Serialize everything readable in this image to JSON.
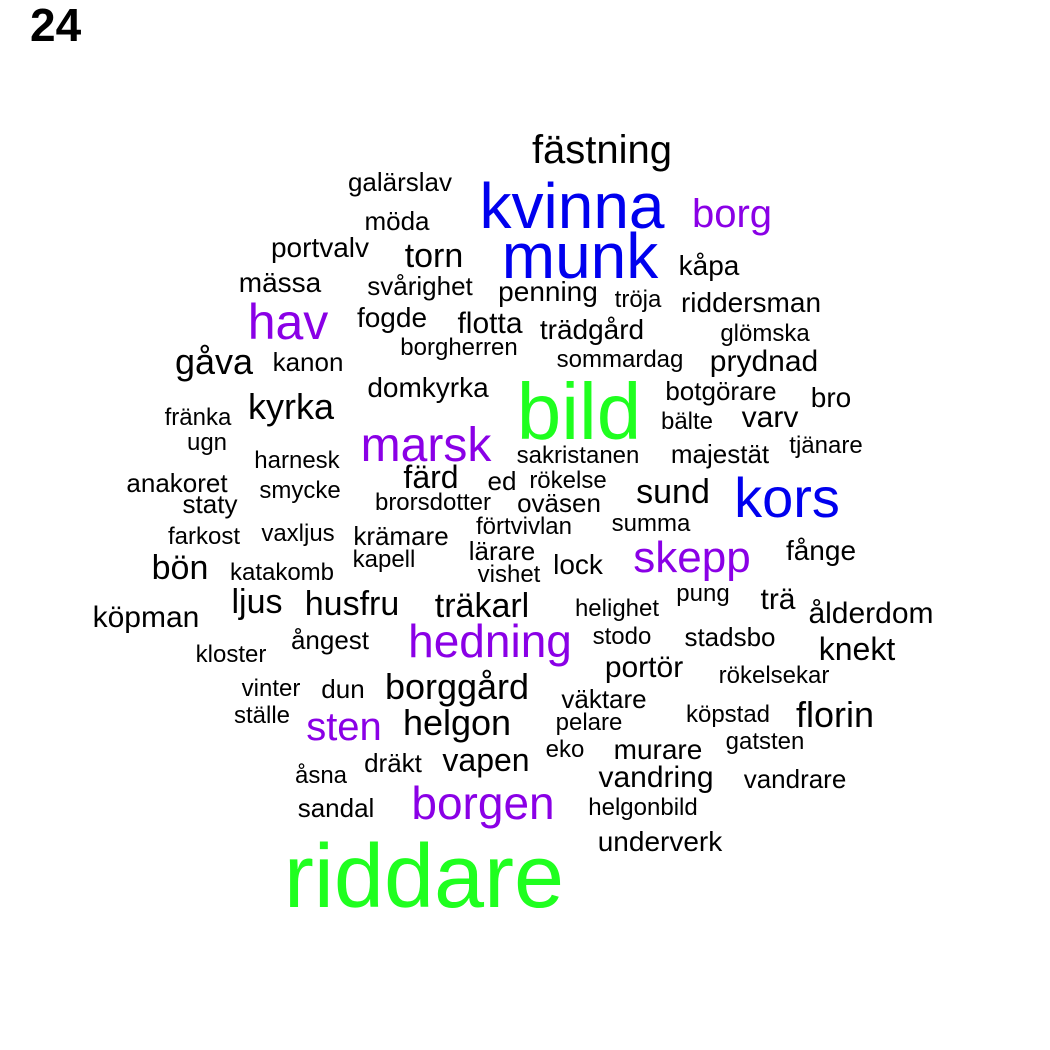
{
  "title": "24",
  "colors": {
    "default": "#000000",
    "blue": "#0000ee",
    "purple": "#8a00e6",
    "green": "#1fff1f"
  },
  "words": [
    {
      "text": "fästning",
      "color": "default"
    },
    {
      "text": "galärslav",
      "color": "default"
    },
    {
      "text": "kvinna",
      "color": "blue"
    },
    {
      "text": "borg",
      "color": "purple"
    },
    {
      "text": "möda",
      "color": "default"
    },
    {
      "text": "munk",
      "color": "blue"
    },
    {
      "text": "portvalv",
      "color": "default"
    },
    {
      "text": "torn",
      "color": "default"
    },
    {
      "text": "kåpa",
      "color": "default"
    },
    {
      "text": "mässa",
      "color": "default"
    },
    {
      "text": "svårighet",
      "color": "default"
    },
    {
      "text": "penning",
      "color": "default"
    },
    {
      "text": "tröja",
      "color": "default"
    },
    {
      "text": "riddersman",
      "color": "default"
    },
    {
      "text": "hav",
      "color": "purple"
    },
    {
      "text": "fogde",
      "color": "default"
    },
    {
      "text": "flotta",
      "color": "default"
    },
    {
      "text": "trädgård",
      "color": "default"
    },
    {
      "text": "glömska",
      "color": "default"
    },
    {
      "text": "borgherren",
      "color": "default"
    },
    {
      "text": "gåva",
      "color": "default"
    },
    {
      "text": "kanon",
      "color": "default"
    },
    {
      "text": "sommardag",
      "color": "default"
    },
    {
      "text": "prydnad",
      "color": "default"
    },
    {
      "text": "domkyrka",
      "color": "default"
    },
    {
      "text": "bild",
      "color": "green"
    },
    {
      "text": "botgörare",
      "color": "default"
    },
    {
      "text": "bro",
      "color": "default"
    },
    {
      "text": "kyrka",
      "color": "default"
    },
    {
      "text": "fränka",
      "color": "default"
    },
    {
      "text": "bälte",
      "color": "default"
    },
    {
      "text": "varv",
      "color": "default"
    },
    {
      "text": "ugn",
      "color": "default"
    },
    {
      "text": "marsk",
      "color": "purple"
    },
    {
      "text": "tjänare",
      "color": "default"
    },
    {
      "text": "majestät",
      "color": "default"
    },
    {
      "text": "sakristanen",
      "color": "default"
    },
    {
      "text": "harnesk",
      "color": "default"
    },
    {
      "text": "färd",
      "color": "default"
    },
    {
      "text": "ed",
      "color": "default"
    },
    {
      "text": "rökelse",
      "color": "default"
    },
    {
      "text": "anakoret",
      "color": "default"
    },
    {
      "text": "sund",
      "color": "default"
    },
    {
      "text": "kors",
      "color": "blue"
    },
    {
      "text": "staty",
      "color": "default"
    },
    {
      "text": "smycke",
      "color": "default"
    },
    {
      "text": "brorsdotter",
      "color": "default"
    },
    {
      "text": "oväsen",
      "color": "default"
    },
    {
      "text": "förtvivlan",
      "color": "default"
    },
    {
      "text": "summa",
      "color": "default"
    },
    {
      "text": "farkost",
      "color": "default"
    },
    {
      "text": "vaxljus",
      "color": "default"
    },
    {
      "text": "krämare",
      "color": "default"
    },
    {
      "text": "lärare",
      "color": "default"
    },
    {
      "text": "skepp",
      "color": "purple"
    },
    {
      "text": "fånge",
      "color": "default"
    },
    {
      "text": "kapell",
      "color": "default"
    },
    {
      "text": "bön",
      "color": "default"
    },
    {
      "text": "katakomb",
      "color": "default"
    },
    {
      "text": "lock",
      "color": "default"
    },
    {
      "text": "vishet",
      "color": "default"
    },
    {
      "text": "pung",
      "color": "default"
    },
    {
      "text": "ljus",
      "color": "default"
    },
    {
      "text": "husfru",
      "color": "default"
    },
    {
      "text": "träkarl",
      "color": "default"
    },
    {
      "text": "helighet",
      "color": "default"
    },
    {
      "text": "trä",
      "color": "default"
    },
    {
      "text": "ålderdom",
      "color": "default"
    },
    {
      "text": "köpman",
      "color": "default"
    },
    {
      "text": "ångest",
      "color": "default"
    },
    {
      "text": "hedning",
      "color": "purple"
    },
    {
      "text": "stodo",
      "color": "default"
    },
    {
      "text": "stadsbo",
      "color": "default"
    },
    {
      "text": "knekt",
      "color": "default"
    },
    {
      "text": "kloster",
      "color": "default"
    },
    {
      "text": "portör",
      "color": "default"
    },
    {
      "text": "rökelsekar",
      "color": "default"
    },
    {
      "text": "vinter",
      "color": "default"
    },
    {
      "text": "dun",
      "color": "default"
    },
    {
      "text": "borggård",
      "color": "default"
    },
    {
      "text": "väktare",
      "color": "default"
    },
    {
      "text": "köpstad",
      "color": "default"
    },
    {
      "text": "florin",
      "color": "default"
    },
    {
      "text": "ställe",
      "color": "default"
    },
    {
      "text": "sten",
      "color": "purple"
    },
    {
      "text": "helgon",
      "color": "default"
    },
    {
      "text": "pelare",
      "color": "default"
    },
    {
      "text": "gatsten",
      "color": "default"
    },
    {
      "text": "eko",
      "color": "default"
    },
    {
      "text": "murare",
      "color": "default"
    },
    {
      "text": "dräkt",
      "color": "default"
    },
    {
      "text": "vapen",
      "color": "default"
    },
    {
      "text": "åsna",
      "color": "default"
    },
    {
      "text": "vandring",
      "color": "default"
    },
    {
      "text": "vandrare",
      "color": "default"
    },
    {
      "text": "sandal",
      "color": "default"
    },
    {
      "text": "borgen",
      "color": "purple"
    },
    {
      "text": "helgonbild",
      "color": "default"
    },
    {
      "text": "underverk",
      "color": "default"
    },
    {
      "text": "riddare",
      "color": "green"
    }
  ]
}
